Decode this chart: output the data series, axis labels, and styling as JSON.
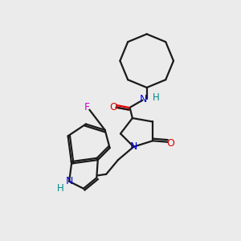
{
  "background_color": "#ebebeb",
  "bond_color": "#1a1a1a",
  "heteroatom_colors": {
    "N": "#0000ee",
    "O": "#dd0000",
    "F": "#cc00cc",
    "NH": "#008888"
  },
  "lw": 1.6
}
